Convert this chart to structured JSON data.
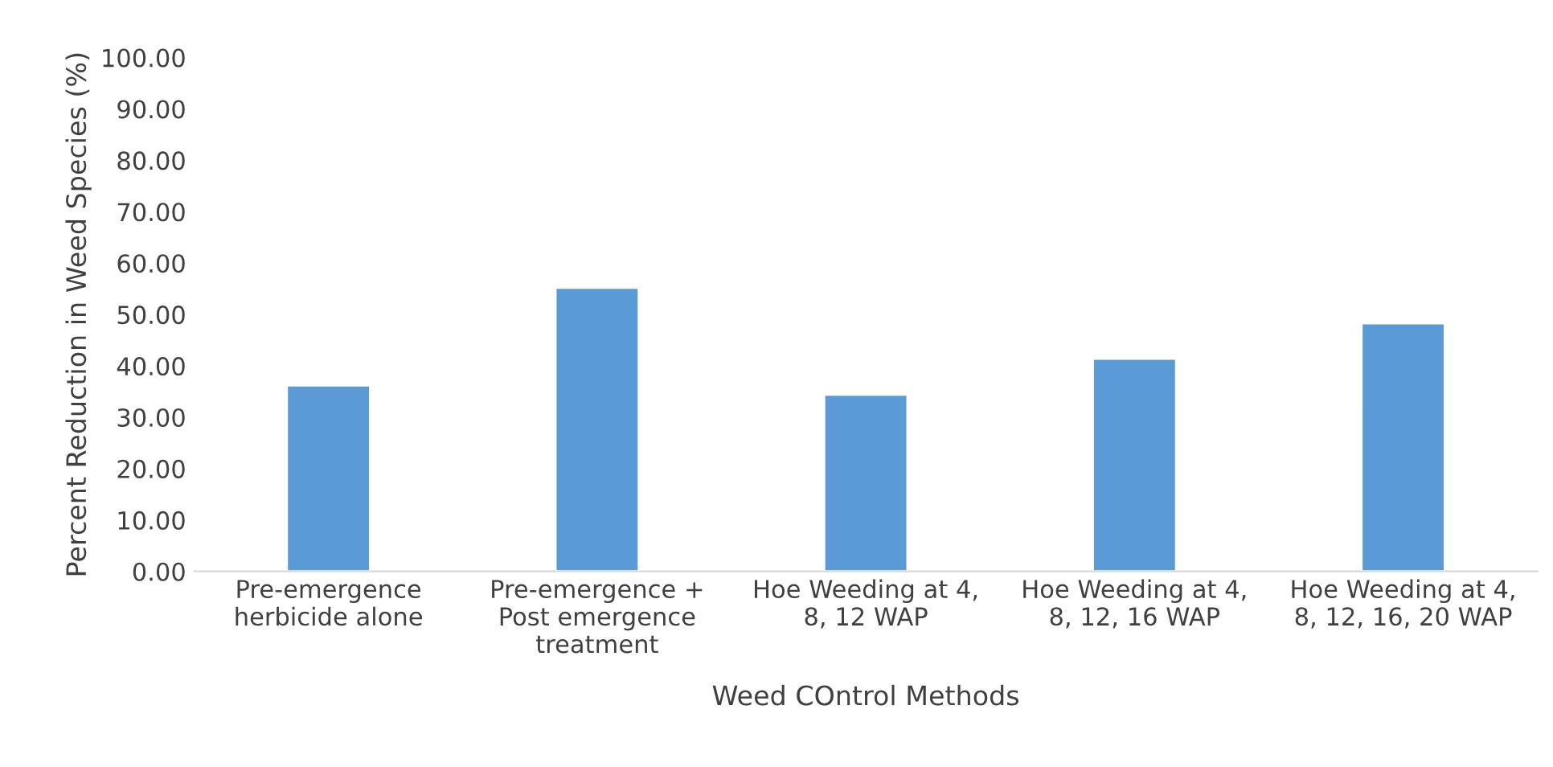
{
  "chart_data": {
    "type": "bar",
    "xlabel": "Weed COntrol Methods",
    "ylabel": "Percent Reduction in Weed Species (%)",
    "categories": [
      "Pre-emergence\nherbicide alone",
      "Pre-emergence +\nPost emergence\ntreatment",
      "Hoe Weeding at 4,\n8, 12 WAP",
      "Hoe Weeding at 4,\n8, 12, 16 WAP",
      "Hoe Weeding at 4,\n8, 12, 16, 20 WAP"
    ],
    "values": [
      36.2,
      55.2,
      34.4,
      41.4,
      48.3
    ],
    "color": "#5b9bd5",
    "ylim": [
      0,
      100
    ],
    "yticks": [
      {
        "value": 0,
        "label": "0.00"
      },
      {
        "value": 10,
        "label": "10.00"
      },
      {
        "value": 20,
        "label": "20.00"
      },
      {
        "value": 30,
        "label": "30.00"
      },
      {
        "value": 40,
        "label": "40.00"
      },
      {
        "value": 50,
        "label": "50.00"
      },
      {
        "value": 60,
        "label": "60.00"
      },
      {
        "value": 70,
        "label": "70.00"
      },
      {
        "value": 80,
        "label": "80.00"
      },
      {
        "value": 90,
        "label": "90.00"
      },
      {
        "value": 100,
        "label": "100.00"
      }
    ],
    "grid": false,
    "legend": false
  }
}
